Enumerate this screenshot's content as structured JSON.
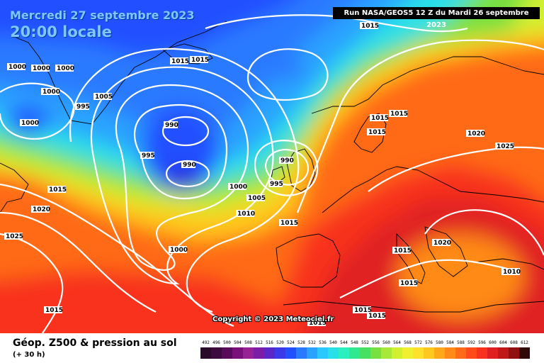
{
  "header": {
    "date": "Mercredi 27 septembre 2023",
    "local_time": "20:00 locale",
    "run": "Run NASA/GEOS5 12 Z du Mardi 26 septembre 2023"
  },
  "copyright": "Copyright © 2023 Meteociel.fr",
  "footer": {
    "title": "Géop. Z500 & pression au sol",
    "lead": "(+ 30 h)"
  },
  "isobar_labels": [
    "1000",
    "1000",
    "1000",
    "1000",
    "1000",
    "995",
    "1005",
    "1015",
    "1015",
    "990",
    "995",
    "990",
    "1000",
    "1005",
    "995",
    "990",
    "1010",
    "1015",
    "1000",
    "1015",
    "1020",
    "1025",
    "1015",
    "1015",
    "1015",
    "1020",
    "1015",
    "1015",
    "1020",
    "1025",
    "1015",
    "1015",
    "1015",
    "1015",
    "1010",
    "1015"
  ],
  "colors": {
    "low_geop": "#1a4fe0",
    "mid_geop": "#7fd84a",
    "high_geop": "#e8321e",
    "isobar": "#ffffff"
  },
  "legend": {
    "values": [
      "492",
      "496",
      "500",
      "504",
      "508",
      "512",
      "516",
      "520",
      "524",
      "528",
      "532",
      "536",
      "540",
      "544",
      "548",
      "552",
      "556",
      "560",
      "564",
      "568",
      "572",
      "576",
      "580",
      "584",
      "588",
      "592",
      "596",
      "600",
      "604",
      "608",
      "612"
    ],
    "colors": [
      "#2a0a2a",
      "#3c0a3c",
      "#5a0a5a",
      "#7a107a",
      "#962296",
      "#7a1ea8",
      "#5a28c8",
      "#3a3ae8",
      "#2050ff",
      "#2a7aff",
      "#2aa2ff",
      "#2ac8ff",
      "#2ae0e8",
      "#2af0c0",
      "#30e890",
      "#48e060",
      "#78e040",
      "#a8e838",
      "#d0f030",
      "#f0f030",
      "#ffe02a",
      "#ffc81e",
      "#ffa81a",
      "#ff8a18",
      "#ff6a18",
      "#ff4a1a",
      "#f8321e",
      "#e02020",
      "#c01818",
      "#901010",
      "#300808"
    ]
  }
}
